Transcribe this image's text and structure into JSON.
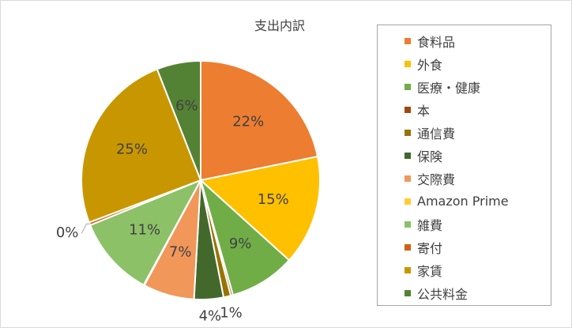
{
  "chart_data": {
    "type": "pie",
    "title": "支出内訳",
    "legend_position": "right",
    "slices": [
      {
        "name": "食料品",
        "value": 22,
        "label": "22%",
        "color": "#ED7D31"
      },
      {
        "name": "外食",
        "value": 15,
        "label": "15%",
        "color": "#FFC000"
      },
      {
        "name": "医療・健康",
        "value": 9,
        "label": "9%",
        "color": "#70AD47"
      },
      {
        "name": "本",
        "value": 0.3,
        "label": "",
        "color": "#9E480E"
      },
      {
        "name": "通信費",
        "value": 1,
        "label": "1%",
        "color": "#997300"
      },
      {
        "name": "保険",
        "value": 4,
        "label": "4%",
        "color": "#43682B"
      },
      {
        "name": "交際費",
        "value": 7,
        "label": "7%",
        "color": "#F1975A"
      },
      {
        "name": "Amazon Prime",
        "value": 0.1,
        "label": "",
        "color": "#FFCD33"
      },
      {
        "name": "雑費",
        "value": 11,
        "label": "11%",
        "color": "#8CC168"
      },
      {
        "name": "寄付",
        "value": 0.4,
        "label": "0%",
        "color": "#D26012"
      },
      {
        "name": "家賃",
        "value": 25,
        "label": "25%",
        "color": "#C89700"
      },
      {
        "name": "公共料金",
        "value": 6,
        "label": "6%",
        "color": "#548235"
      }
    ]
  }
}
